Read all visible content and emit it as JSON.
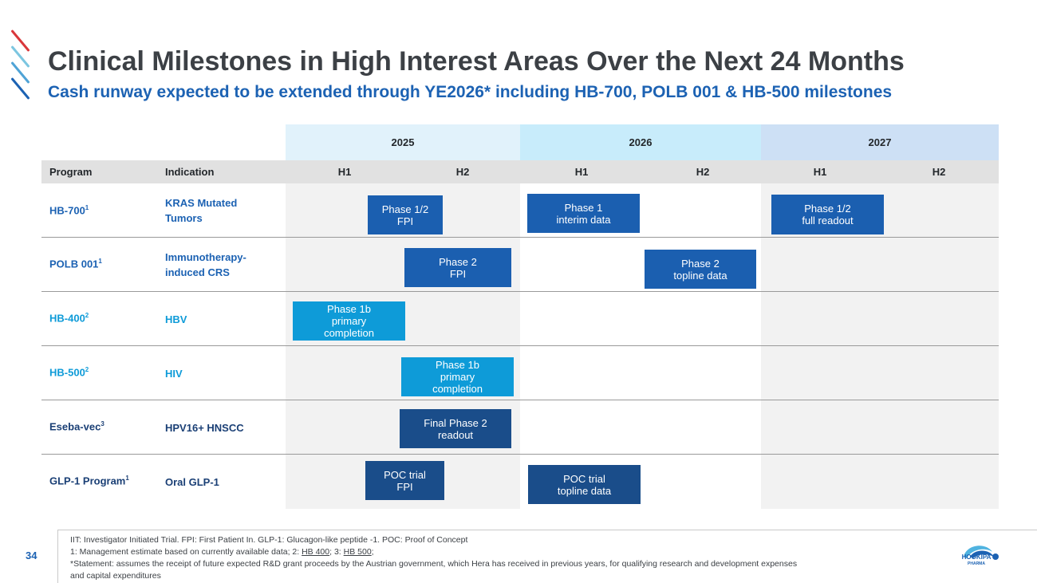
{
  "header": {
    "title": "Clinical Milestones in High Interest Areas Over the Next 24 Months",
    "subtitle": "Cash runway expected to be extended through YE2026* including HB-700, POLB 001 & HB-500 milestones"
  },
  "colors": {
    "accent_red": "#d9373b",
    "accent_light_blue": "#7cc6e0",
    "accent_blue": "#1c62b3",
    "year_2025_bg": "#e1f2fb",
    "year_2026_bg": "#c8ecfb",
    "year_2027_bg": "#cde0f5",
    "milestone_mid_blue": "#1b5fb0",
    "milestone_cyan": "#0e9bd8",
    "milestone_navy": "#1a4d8a"
  },
  "timeline": {
    "years": [
      "2025",
      "2026",
      "2027"
    ],
    "halves": [
      "H1",
      "H2",
      "H1",
      "H2",
      "H1",
      "H2"
    ],
    "col_program": "Program",
    "col_indication": "Indication"
  },
  "rows": [
    {
      "program": "HB-700",
      "sup": "1",
      "indication": "KRAS Mutated Tumors",
      "milestones": [
        "Phase 1/2\nFPI",
        "Phase 1\ninterim data",
        "Phase 1/2\nfull readout"
      ]
    },
    {
      "program": "POLB 001",
      "sup": "1",
      "indication": "Immunotherapy-induced CRS",
      "milestones": [
        "Phase 2\nFPI",
        "Phase 2\ntopline data"
      ]
    },
    {
      "program": "HB-400",
      "sup": "2",
      "indication": "HBV",
      "milestones": [
        "Phase 1b\nprimary\ncompletion"
      ]
    },
    {
      "program": "HB-500",
      "sup": "2",
      "indication": "HIV",
      "milestones": [
        "Phase 1b\nprimary\ncompletion"
      ]
    },
    {
      "program": "Eseba-vec",
      "sup": "3",
      "indication": "HPV16+ HNSCC",
      "milestones": [
        "Final Phase 2\nreadout"
      ]
    },
    {
      "program": "GLP-1 Program",
      "sup": "1",
      "indication": "Oral GLP-1",
      "milestones": [
        "POC trial\nFPI",
        "POC trial\ntopline data"
      ]
    }
  ],
  "footer": {
    "page_number": "34",
    "line1": "IIT: Investigator Initiated Trial. FPI: First Patient In. GLP-1: Glucagon-like peptide -1. POC: Proof of Concept",
    "line2_prefix": "1: Management estimate based on currently available data; 2: ",
    "line2_link1": "HB 400",
    "line2_mid": "; 3: ",
    "line2_link2": "HB 500",
    "line2_suffix": ";",
    "line3": "*Statement: assumes the receipt of future expected R&D grant proceeds by the Austrian government, which Hera has received in previous years, for qualifying research and development expenses",
    "line4": "and capital expenditures",
    "logo_text": "HOOKIPA",
    "logo_subtext": "PHARMA"
  }
}
